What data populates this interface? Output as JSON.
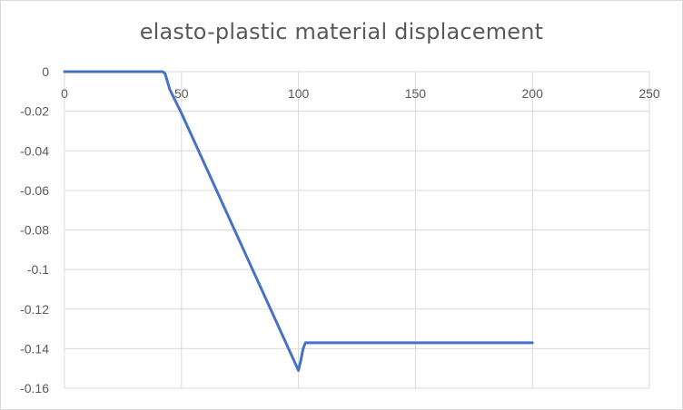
{
  "chart_data": {
    "type": "line",
    "title": "elasto-plastic material displacement",
    "xlabel": "",
    "ylabel": "",
    "xlim": [
      0,
      250
    ],
    "ylim": [
      -0.16,
      0
    ],
    "x_ticks": [
      0,
      50,
      100,
      150,
      200,
      250
    ],
    "y_ticks": [
      0,
      -0.02,
      -0.04,
      -0.06,
      -0.08,
      -0.1,
      -0.12,
      -0.14,
      -0.16
    ],
    "x_tick_labels": [
      "0",
      "50",
      "100",
      "150",
      "200",
      "250"
    ],
    "y_tick_labels": [
      "0",
      "-0.02",
      "-0.04",
      "-0.06",
      "-0.08",
      "-0.1",
      "-0.12",
      "-0.14",
      "-0.16"
    ],
    "grid": true,
    "legend": "none",
    "series": [
      {
        "color": "#4472c4",
        "x": [
          0,
          42,
          43,
          45,
          50,
          60,
          70,
          80,
          90,
          100,
          101,
          102,
          103,
          105,
          150,
          200
        ],
        "y": [
          0,
          0,
          -0.001,
          -0.009,
          -0.021,
          -0.047,
          -0.073,
          -0.099,
          -0.125,
          -0.151,
          -0.146,
          -0.14,
          -0.137,
          -0.137,
          -0.137,
          -0.137
        ]
      }
    ]
  }
}
